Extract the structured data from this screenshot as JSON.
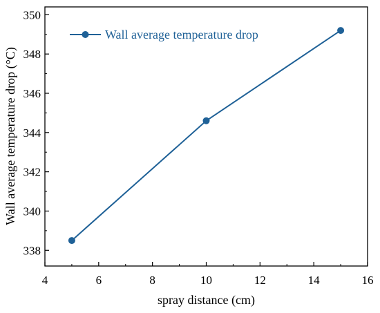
{
  "chart_data": {
    "type": "line",
    "title": "",
    "xlabel": "spray distance (cm)",
    "ylabel": "Wall average temperature drop (°C)",
    "xlim": [
      4,
      16
    ],
    "ylim": [
      337.2,
      350.4
    ],
    "x_ticks": [
      4,
      6,
      8,
      10,
      12,
      14,
      16
    ],
    "y_ticks": [
      338,
      340,
      342,
      344,
      346,
      348,
      350
    ],
    "grid": false,
    "legend_position": "top-left",
    "colors": {
      "series": "#1f6197",
      "legend_text": "#1f6197",
      "axis": "#000000"
    },
    "series": [
      {
        "name": "Wall average temperature drop",
        "x": [
          5,
          10,
          15
        ],
        "y": [
          338.5,
          344.6,
          349.2
        ]
      }
    ]
  }
}
